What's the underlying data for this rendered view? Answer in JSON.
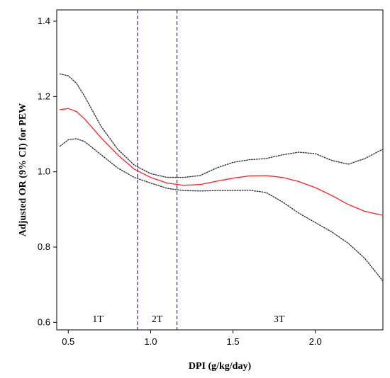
{
  "chart_data": {
    "type": "line",
    "xlabel": "DPI (g/kg/day)",
    "ylabel": "Adjusted OR (9% CI) for PEW",
    "xlim": [
      0.43,
      2.41
    ],
    "ylim": [
      0.58,
      1.43
    ],
    "xticks": [
      {
        "value": 0.5,
        "label": "0.5"
      },
      {
        "value": 1.0,
        "label": "1.0"
      },
      {
        "value": 1.5,
        "label": "1.5"
      },
      {
        "value": 2.0,
        "label": "2.0"
      }
    ],
    "yticks": [
      {
        "value": 0.6,
        "label": "0.6"
      },
      {
        "value": 0.8,
        "label": "0.8"
      },
      {
        "value": 1.0,
        "label": "1.0"
      },
      {
        "value": 1.2,
        "label": "1.2"
      },
      {
        "value": 1.4,
        "label": "1.4"
      }
    ],
    "grid": false,
    "series": [
      {
        "role": "estimate",
        "color": "#ff2020",
        "style": "solid",
        "x": [
          0.45,
          0.5,
          0.55,
          0.6,
          0.7,
          0.8,
          0.9,
          1.0,
          1.1,
          1.2,
          1.3,
          1.4,
          1.5,
          1.6,
          1.7,
          1.8,
          1.9,
          2.0,
          2.1,
          2.2,
          2.3,
          2.41
        ],
        "y": [
          1.165,
          1.168,
          1.16,
          1.14,
          1.09,
          1.045,
          1.007,
          0.985,
          0.97,
          0.964,
          0.966,
          0.975,
          0.983,
          0.989,
          0.99,
          0.985,
          0.974,
          0.958,
          0.937,
          0.913,
          0.895,
          0.884
        ]
      },
      {
        "role": "upper-ci",
        "color": "#333333",
        "style": "dotted",
        "x": [
          0.45,
          0.5,
          0.55,
          0.6,
          0.7,
          0.8,
          0.9,
          1.0,
          1.1,
          1.2,
          1.3,
          1.4,
          1.5,
          1.6,
          1.7,
          1.8,
          1.9,
          2.0,
          2.1,
          2.2,
          2.3,
          2.41
        ],
        "y": [
          1.26,
          1.255,
          1.235,
          1.2,
          1.12,
          1.06,
          1.018,
          0.995,
          0.985,
          0.985,
          0.99,
          1.01,
          1.025,
          1.032,
          1.035,
          1.045,
          1.052,
          1.048,
          1.03,
          1.02,
          1.035,
          1.06
        ]
      },
      {
        "role": "lower-ci",
        "color": "#333333",
        "style": "dotted",
        "x": [
          0.45,
          0.5,
          0.55,
          0.6,
          0.7,
          0.8,
          0.9,
          1.0,
          1.1,
          1.2,
          1.3,
          1.4,
          1.5,
          1.6,
          1.7,
          1.8,
          1.9,
          2.0,
          2.1,
          2.2,
          2.3,
          2.41
        ],
        "y": [
          1.068,
          1.085,
          1.088,
          1.08,
          1.045,
          1.01,
          0.985,
          0.97,
          0.956,
          0.95,
          0.949,
          0.95,
          0.95,
          0.951,
          0.945,
          0.92,
          0.89,
          0.865,
          0.84,
          0.81,
          0.77,
          0.71
        ]
      }
    ],
    "reference_lines": [
      {
        "axis": "x",
        "value": 0.92,
        "color": "#2222dd",
        "style": "dashed"
      },
      {
        "axis": "x",
        "value": 1.16,
        "color": "#2222dd",
        "style": "dashed"
      }
    ],
    "annotations": [
      {
        "text": "1T",
        "x": 0.68,
        "y": 0.61
      },
      {
        "text": "2T",
        "x": 1.04,
        "y": 0.61
      },
      {
        "text": "3T",
        "x": 1.78,
        "y": 0.61
      }
    ]
  }
}
